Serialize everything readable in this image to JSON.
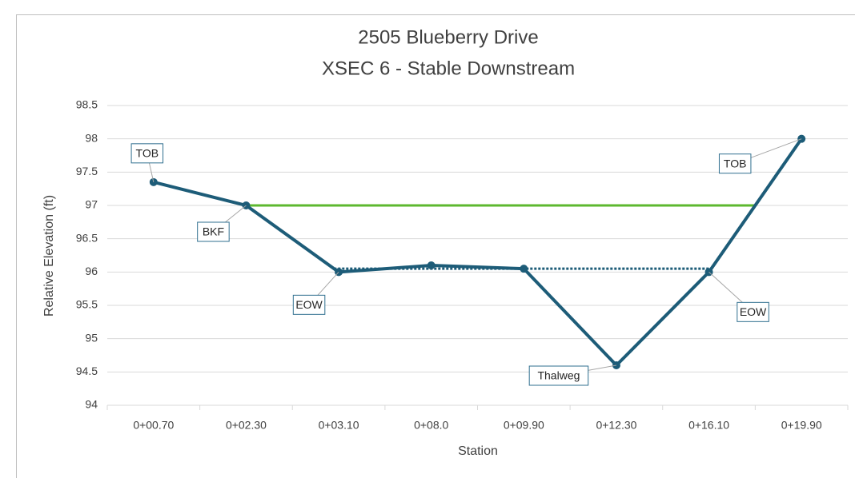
{
  "chart_data": {
    "type": "line",
    "title": "2505 Blueberry Drive",
    "subtitle": "XSEC 6 - Stable Downstream",
    "x_label": "Station",
    "y_label": "Relative Elevation (ft)",
    "categories": [
      "0+00.70",
      "0+02.30",
      "0+03.10",
      "0+08.0",
      "0+09.90",
      "0+12.30",
      "0+16.10",
      "0+19.90"
    ],
    "values": [
      97.35,
      97.0,
      96.0,
      96.1,
      96.05,
      94.6,
      96.0,
      98.0
    ],
    "color": "#1d5c78",
    "ylim": [
      94,
      98.5
    ],
    "yticks": [
      94,
      94.5,
      95,
      95.5,
      96,
      96.5,
      97,
      97.5,
      98,
      98.5
    ],
    "grid": true,
    "reference_lines": [
      {
        "value": 97,
        "color": "#5db82f",
        "style": "solid"
      },
      {
        "value": 96.05,
        "color": "#1d5c78",
        "style": "dotted"
      }
    ],
    "annotations": [
      {
        "text": "TOB",
        "index": 0
      },
      {
        "text": "BKF",
        "index": 1
      },
      {
        "text": "EOW",
        "index": 2
      },
      {
        "text": "Thalweg",
        "index": 5
      },
      {
        "text": "EOW",
        "index": 6
      },
      {
        "text": "TOB",
        "index": 7
      }
    ]
  }
}
